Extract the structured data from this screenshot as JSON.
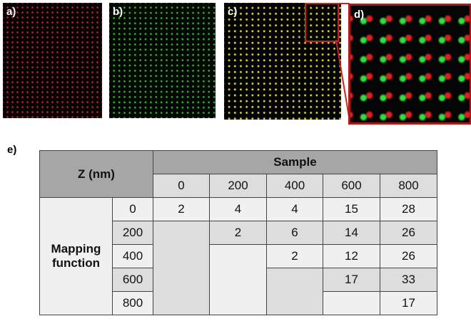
{
  "panels": {
    "a": "a)",
    "b": "b)",
    "c": "c)",
    "d": "d)",
    "e": "e)"
  },
  "colors": {
    "red_channel": "#c0203a",
    "green_channel": "#3fae3a",
    "overlay": "#d8d040",
    "zoom_box": "#d02020"
  },
  "table": {
    "corner": "Z (nm)",
    "sample_header": "Sample",
    "sample_columns": [
      "0",
      "200",
      "400",
      "600",
      "800"
    ],
    "row_group": "Mapping function",
    "rows": [
      {
        "z": "0",
        "values": [
          "2",
          "4",
          "4",
          "15",
          "28"
        ]
      },
      {
        "z": "200",
        "values": [
          "",
          "2",
          "6",
          "14",
          "26"
        ]
      },
      {
        "z": "400",
        "values": [
          "",
          "",
          "2",
          "12",
          "26"
        ]
      },
      {
        "z": "600",
        "values": [
          "",
          "",
          "",
          "17",
          "33"
        ]
      },
      {
        "z": "800",
        "values": [
          "",
          "",
          "",
          "",
          "17"
        ]
      }
    ]
  }
}
